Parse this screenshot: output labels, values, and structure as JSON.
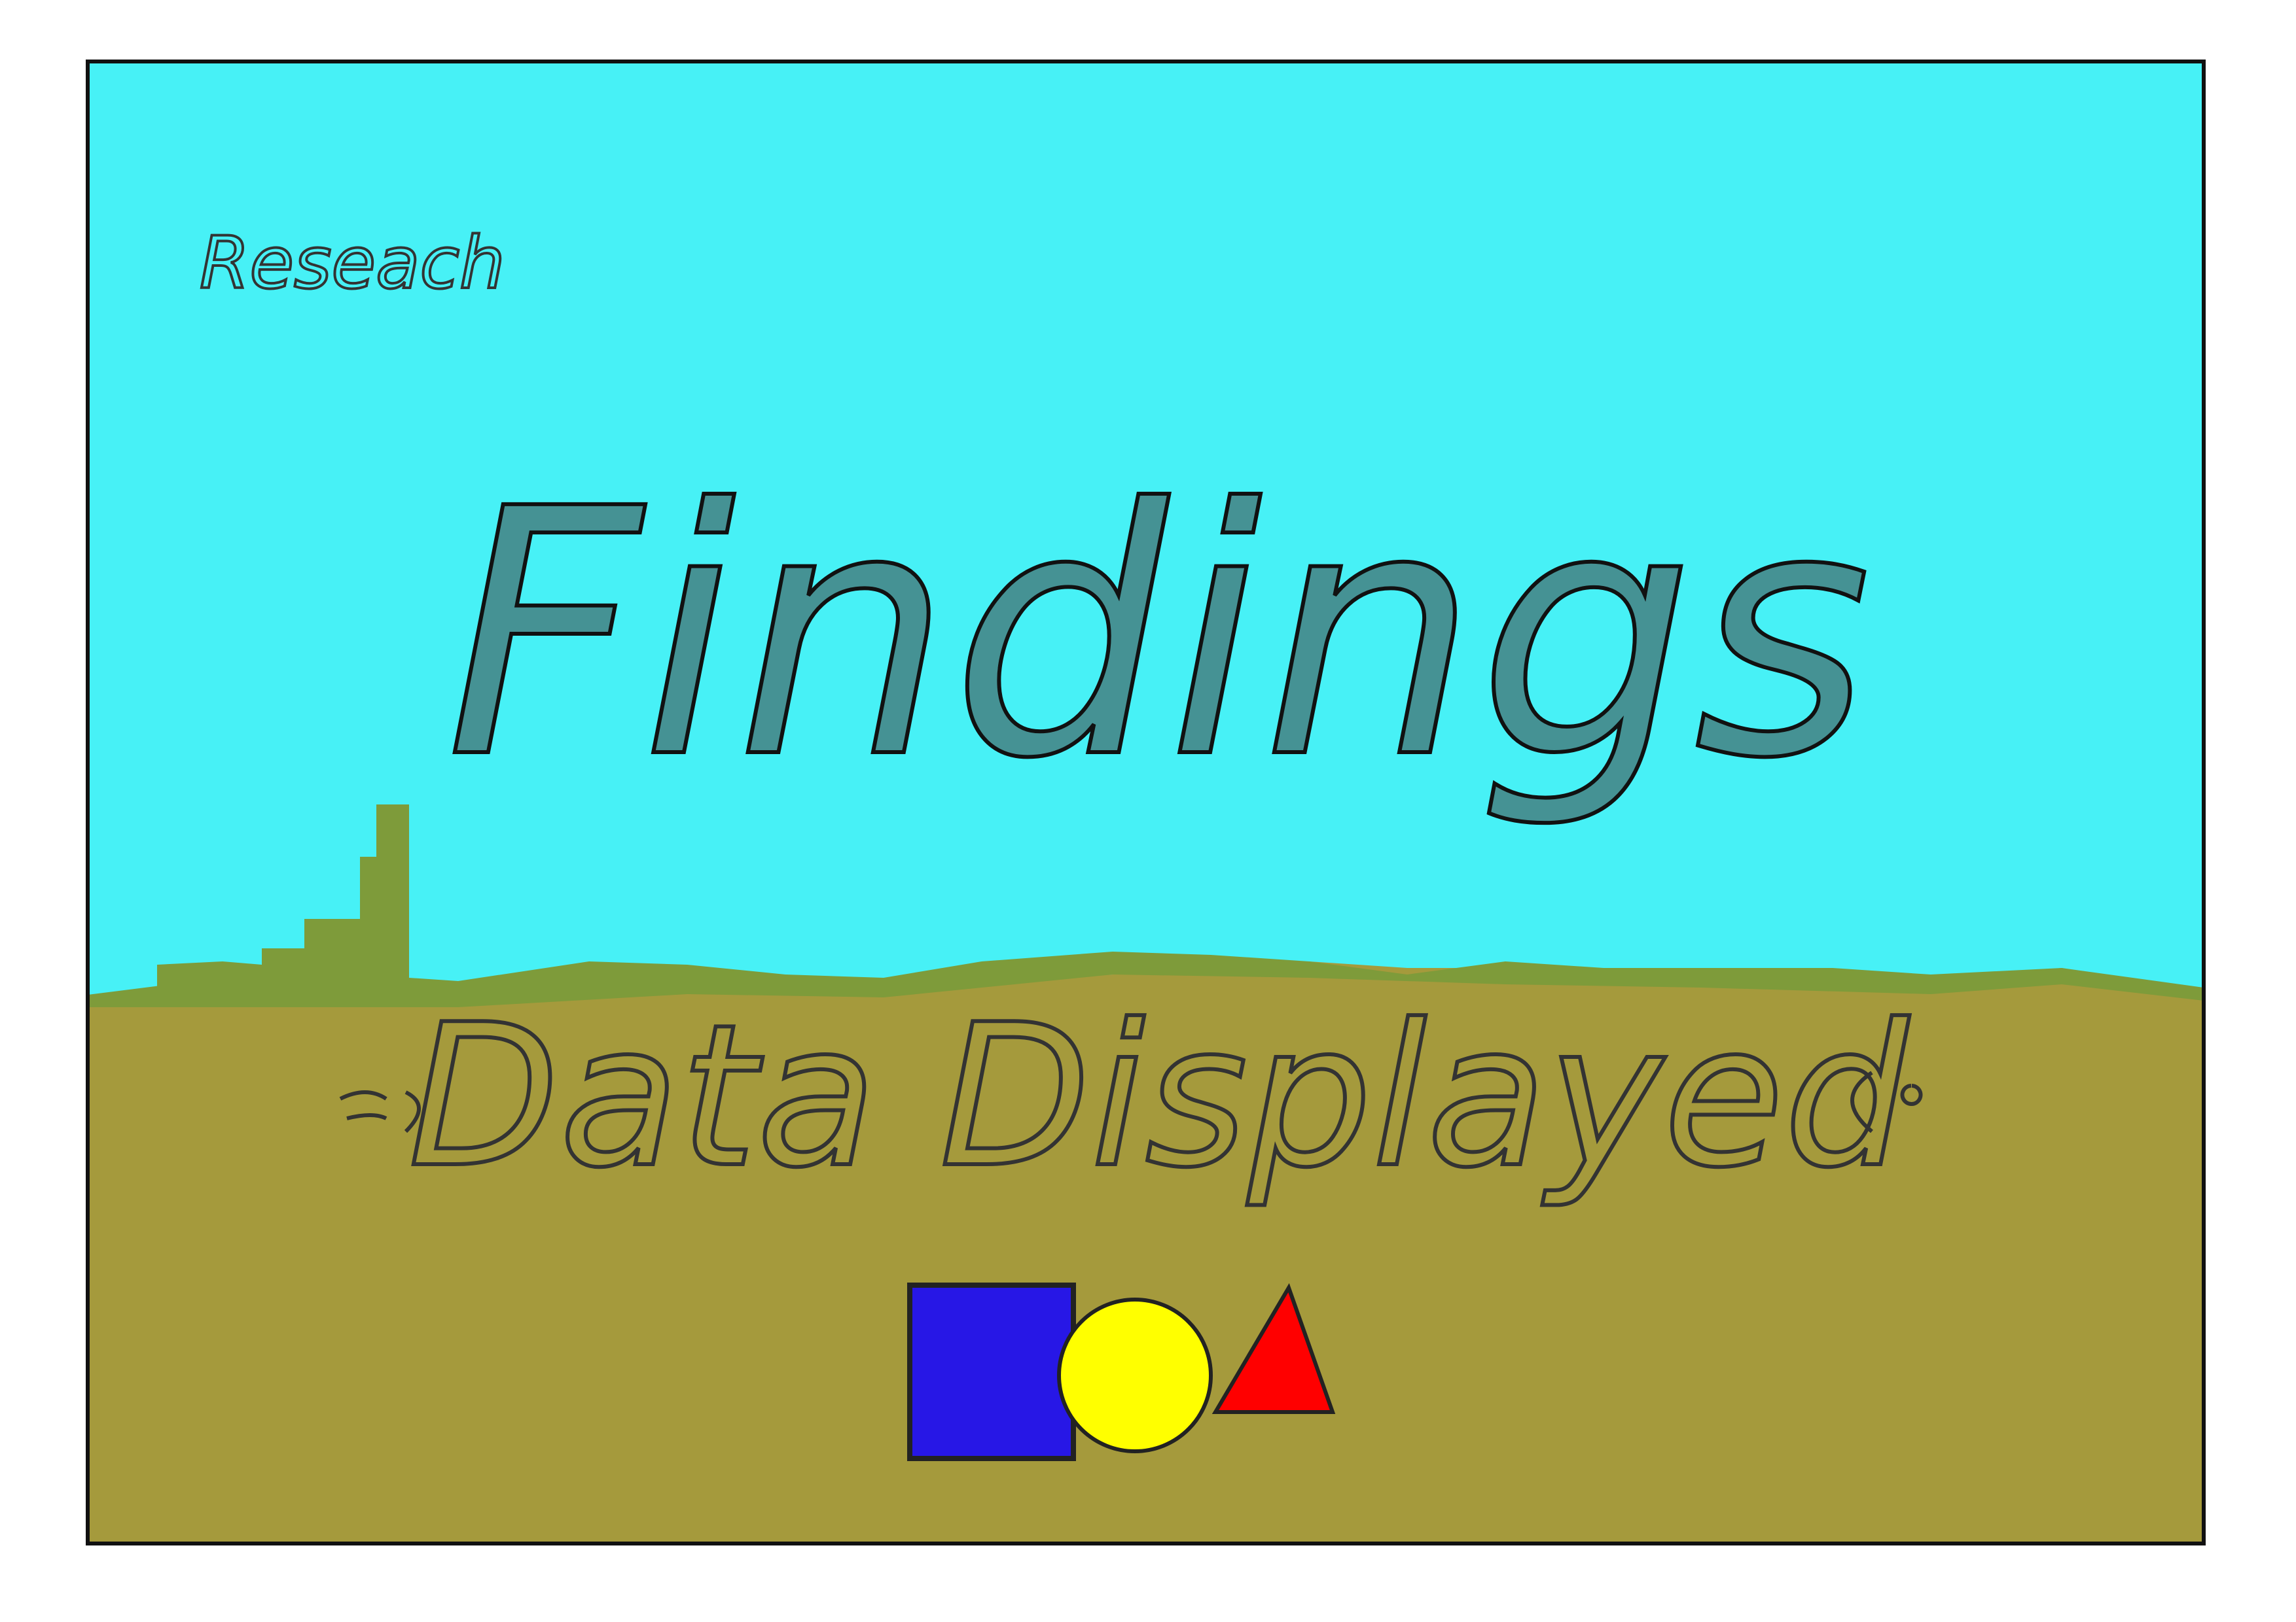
{
  "header": {
    "kicker": "Reseach",
    "title": "Findings"
  },
  "footer": {
    "subtitle": "Data Displayed"
  }
}
